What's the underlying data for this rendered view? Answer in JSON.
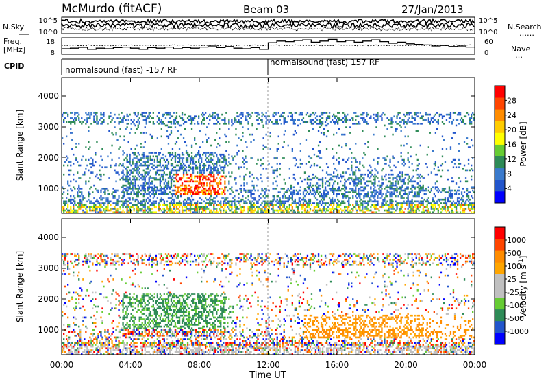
{
  "header": {
    "station": "McMurdo (fitACF)",
    "beam": "Beam 03",
    "date": "27/Jan/2013"
  },
  "colors": {
    "power_scale": [
      "#0000ff",
      "#2255cc",
      "#3a7acc",
      "#2e8b57",
      "#66cc33",
      "#ffff00",
      "#ffcc00",
      "#ff8c00",
      "#ff4500",
      "#ff0000"
    ],
    "velocity_scale": [
      "#ff0000",
      "#ff4500",
      "#ff8c00",
      "#ffa500",
      "#c0c0c0",
      "#c0c0c0",
      "#66cc33",
      "#2e8b57",
      "#2255cc",
      "#0000ff"
    ],
    "ground_scatter": "#b0b0b0"
  },
  "chart_data": [
    {
      "type": "line",
      "panel": "noise",
      "left_label": "N.Sky",
      "right_label": "N.Search",
      "left_ticks": [
        "10^5",
        "10^0"
      ],
      "right_ticks": [
        "10^5",
        "10^0"
      ],
      "series": [
        {
          "name": "N.Sky",
          "style": "solid"
        },
        {
          "name": "N.Search",
          "style": "dotted"
        }
      ]
    },
    {
      "type": "line",
      "panel": "frequency_nave",
      "left_label_lines": [
        "Freq.",
        "[MHz]"
      ],
      "right_label": "Nave",
      "left_ticks": [
        "18",
        "8"
      ],
      "right_ticks": [
        "60",
        "0"
      ],
      "series": [
        {
          "name": "Freq.",
          "style": "solid"
        },
        {
          "name": "Nave",
          "style": "dotted"
        }
      ],
      "nave_step_x": [
        0,
        0.5,
        1.0,
        1.5,
        2.0,
        2.5,
        3.0,
        3.5,
        4.0,
        4.5,
        5.0,
        5.5,
        6.0,
        6.5,
        7.0,
        7.5,
        8.0,
        8.5,
        9.0,
        9.5,
        10.0,
        10.5,
        11.0,
        11.5,
        12.0,
        12.5,
        13.0,
        13.5,
        14.0,
        14.5,
        15.0,
        15.5,
        16.0,
        16.5,
        17.0,
        17.5,
        18.0,
        18.5,
        19.0,
        19.5,
        20.0,
        20.5,
        21.0,
        21.5,
        22.0,
        22.5,
        23.0,
        23.5,
        24.0
      ],
      "nave_step_y": [
        20,
        22,
        25,
        18,
        22,
        20,
        24,
        26,
        22,
        18,
        24,
        22,
        26,
        20,
        24,
        22,
        26,
        30,
        24,
        28,
        22,
        20,
        24,
        18,
        42,
        48,
        46,
        50,
        52,
        44,
        48,
        54,
        46,
        50,
        44,
        48,
        52,
        46,
        40,
        44,
        38,
        36,
        34,
        30,
        32,
        28,
        30,
        26,
        24
      ]
    },
    {
      "type": "label",
      "panel": "cpid",
      "label": "CPID",
      "segments": [
        {
          "text": "normalsound (fast) -157 RF",
          "x_start": 0,
          "x_end": 12
        },
        {
          "text": "normalsound (fast) 157 RF",
          "x_start": 12,
          "x_end": 24
        }
      ]
    },
    {
      "type": "heatmap",
      "panel": "power",
      "ylabel": "Slant Range [km]",
      "yticks": [
        1000,
        2000,
        3000,
        4000
      ],
      "ylim": [
        200,
        4600
      ],
      "colorbar_label": "Power [dB]",
      "colorbar_ticks": [
        4,
        8,
        12,
        16,
        20,
        24,
        28
      ],
      "colorbar_range": [
        0,
        32
      ]
    },
    {
      "type": "heatmap",
      "panel": "velocity",
      "ylabel": "Slant Range [km]",
      "yticks": [
        1000,
        2000,
        3000,
        4000
      ],
      "ylim": [
        200,
        4600
      ],
      "colorbar_label": "Velocity [m s^-1]",
      "colorbar_ticks": [
        "1000",
        "500",
        "100",
        "25",
        "-25",
        "-100",
        "-500",
        "-1000"
      ]
    }
  ],
  "time_axis": {
    "label": "Time UT",
    "ticks": [
      "00:00",
      "04:00",
      "08:00",
      "12:00",
      "16:00",
      "20:00",
      "00:00"
    ],
    "tick_hours": [
      0,
      4,
      8,
      12,
      16,
      20,
      24
    ]
  }
}
